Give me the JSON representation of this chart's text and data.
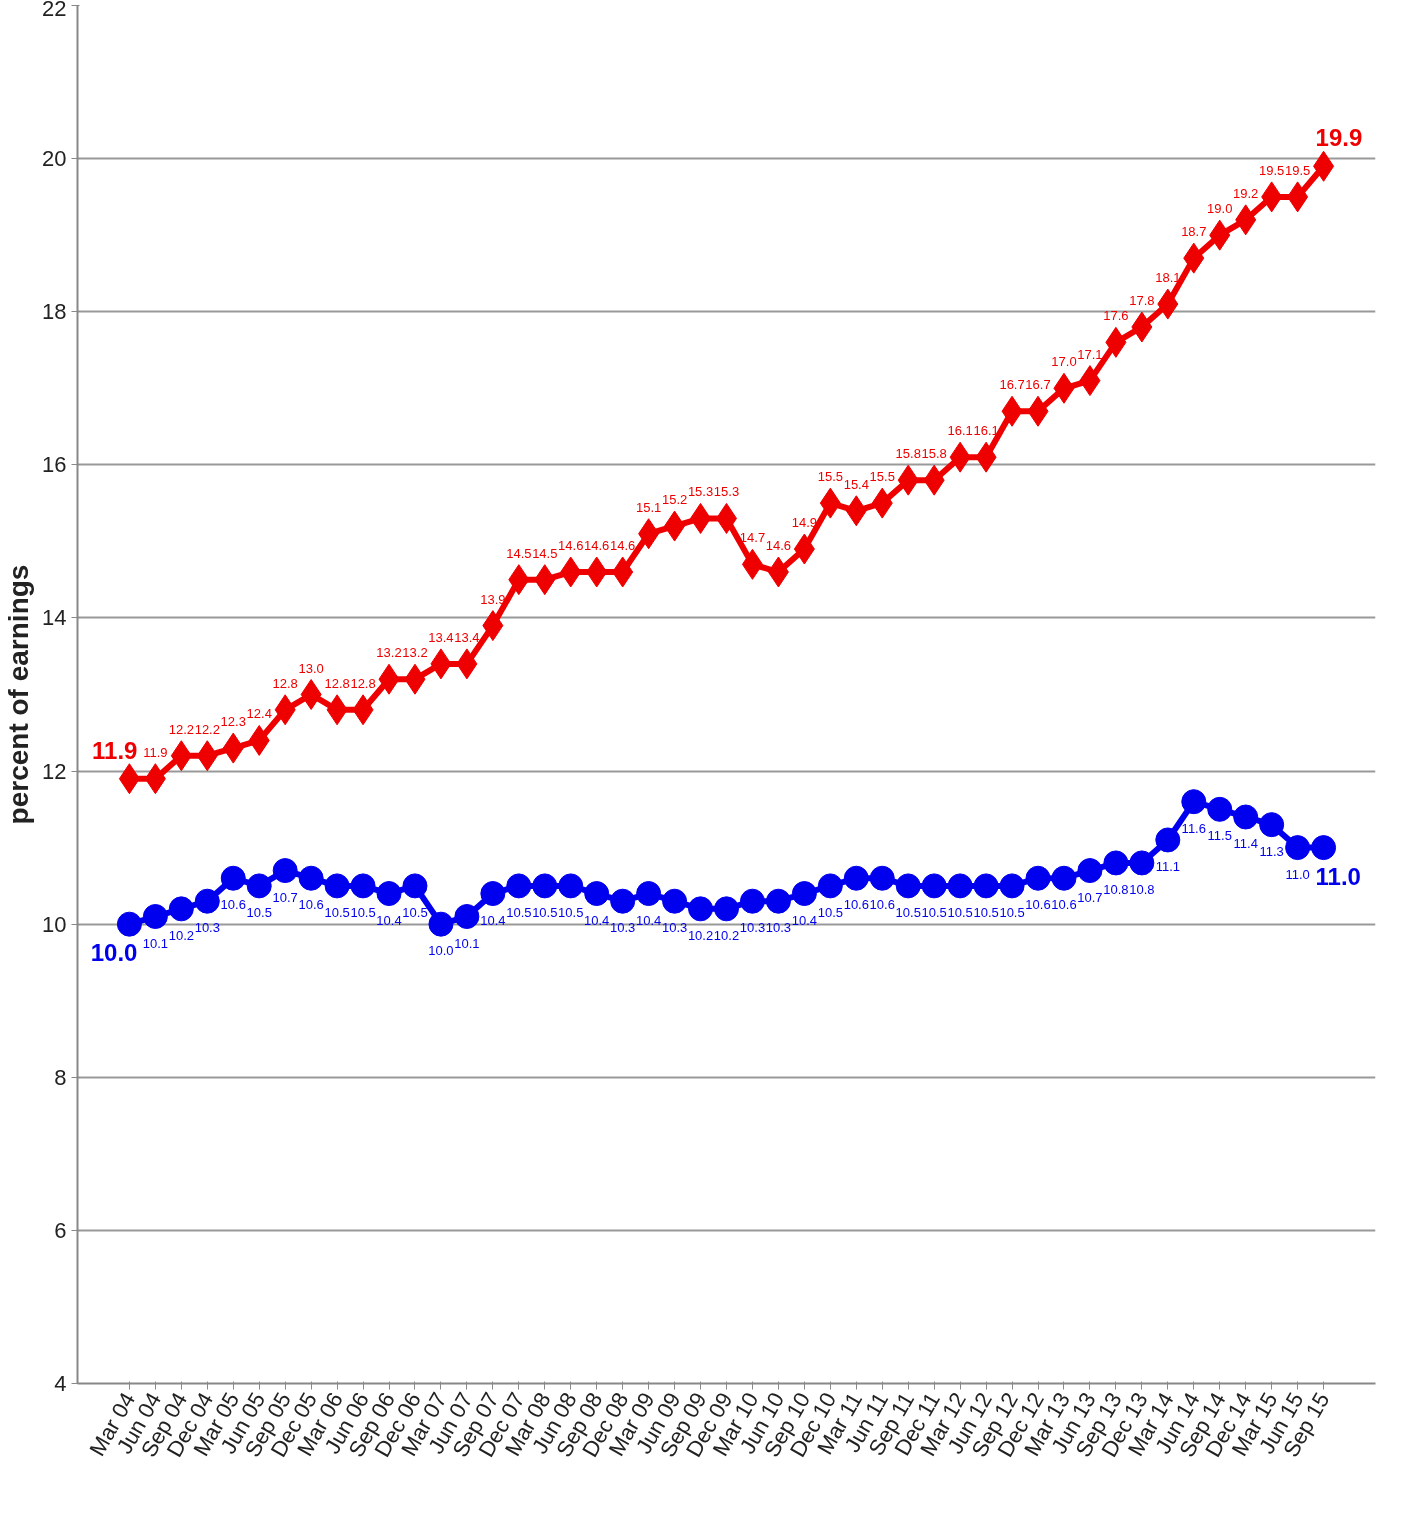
{
  "chart_data": {
    "type": "line",
    "ylabel": "percent of earnings",
    "categories": [
      "Mar 04",
      "Jun 04",
      "Sep 04",
      "Dec 04",
      "Mar 05",
      "Jun 05",
      "Sep 05",
      "Dec 05",
      "Mar 06",
      "Jun 06",
      "Sep 06",
      "Dec 06",
      "Mar 07",
      "Jun 07",
      "Sep 07",
      "Dec 07",
      "Mar 08",
      "Jun 08",
      "Sep 08",
      "Dec 08",
      "Mar 09",
      "Jun 09",
      "Sep 09",
      "Dec 09",
      "Mar 10",
      "Jun 10",
      "Sep 10",
      "Dec 10",
      "Mar 11",
      "Jun 11",
      "Sep 11",
      "Dec 11",
      "Mar 12",
      "Jun 12",
      "Sep 12",
      "Dec 12",
      "Mar 13",
      "Jun 13",
      "Sep 13",
      "Dec 13",
      "Mar 14",
      "Jun 14",
      "Sep 14",
      "Dec 14",
      "Mar 15",
      "Jun 15",
      "Sep 15"
    ],
    "series": [
      {
        "color": "#ee0000",
        "marker": "diamond",
        "values": [
          11.9,
          11.9,
          12.2,
          12.2,
          12.3,
          12.4,
          12.8,
          13.0,
          12.8,
          12.8,
          13.2,
          13.2,
          13.4,
          13.4,
          13.9,
          14.5,
          14.5,
          14.6,
          14.6,
          14.6,
          15.1,
          15.2,
          15.3,
          15.3,
          14.7,
          14.6,
          14.9,
          15.5,
          15.4,
          15.5,
          15.8,
          15.8,
          16.1,
          16.1,
          16.7,
          16.7,
          17.0,
          17.1,
          17.6,
          17.8,
          18.1,
          18.7,
          19.0,
          19.2,
          19.5,
          19.5,
          19.9
        ],
        "value_labels": [
          "11.9",
          "11.9",
          "12.2",
          "12.2",
          "12.3",
          "12.4",
          "12.8",
          "13.0",
          "12.8",
          "12.8",
          "13.2",
          "13.2",
          "13.4",
          "13.4",
          "13.9",
          "14.5",
          "14.5",
          "14.6",
          "14.6",
          "14.6",
          "15.1",
          "15.2",
          "15.3",
          "15.3",
          "14.7",
          "14.6",
          "14.9",
          "15.5",
          "15.4",
          "15.5",
          "15.8",
          "15.8",
          "16.1",
          "16.1",
          "16.7",
          "16.7",
          "17.0",
          "17.1",
          "17.6",
          "17.8",
          "18.1",
          "18.7",
          "19.0",
          "19.2",
          "19.5",
          "19.5",
          "19.9"
        ]
      },
      {
        "color": "#0000ee",
        "marker": "circle",
        "values": [
          10.0,
          10.1,
          10.2,
          10.3,
          10.6,
          10.5,
          10.7,
          10.6,
          10.5,
          10.5,
          10.4,
          10.5,
          10.0,
          10.1,
          10.4,
          10.5,
          10.5,
          10.5,
          10.4,
          10.3,
          10.4,
          10.3,
          10.2,
          10.2,
          10.3,
          10.3,
          10.4,
          10.5,
          10.6,
          10.6,
          10.5,
          10.5,
          10.5,
          10.5,
          10.5,
          10.6,
          10.6,
          10.7,
          10.8,
          10.8,
          11.1,
          11.6,
          11.5,
          11.4,
          11.3,
          11.0,
          11.0
        ],
        "value_labels": [
          "10.0",
          "10.1",
          "10.2",
          "10.3",
          "10.6",
          "10.5",
          "10.7",
          "10.6",
          "10.5",
          "10.5",
          "10.4",
          "10.5",
          "10.0",
          "10.1",
          "10.4",
          "10.5",
          "10.5",
          "10.5",
          "10.4",
          "10.3",
          "10.4",
          "10.3",
          "10.2",
          "10.2",
          "10.3",
          "10.3",
          "10.4",
          "10.5",
          "10.6",
          "10.6",
          "10.5",
          "10.5",
          "10.5",
          "10.5",
          "10.5",
          "10.6",
          "10.6",
          "10.7",
          "10.8",
          "10.8",
          "11.1",
          "11.6",
          "11.5",
          "11.4",
          "11.3",
          "11.0",
          "11.0"
        ]
      }
    ],
    "ylim": [
      4,
      22
    ],
    "yticks": [
      4,
      6,
      8,
      10,
      12,
      14,
      16,
      18,
      20,
      22
    ],
    "grid": "y",
    "line_style": "solid"
  }
}
